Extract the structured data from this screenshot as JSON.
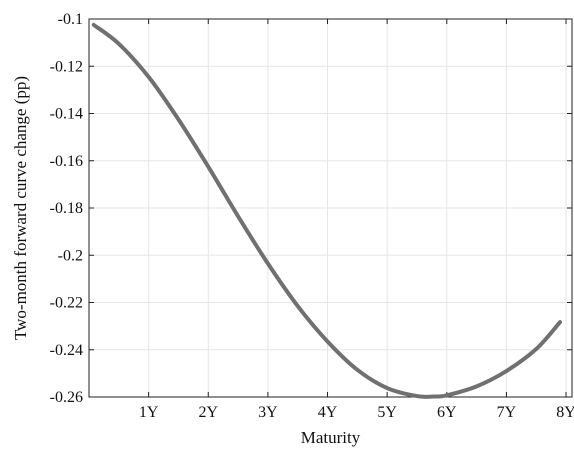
{
  "chart_data": {
    "type": "line",
    "title": "",
    "xlabel": "Maturity",
    "ylabel": "Two-month forward curve change (pp)",
    "xlim": [
      0,
      8.1
    ],
    "ylim": [
      -0.26,
      -0.1
    ],
    "x_ticks": [
      1,
      2,
      3,
      4,
      5,
      6,
      7,
      8
    ],
    "x_tick_labels": [
      "1Y",
      "2Y",
      "3Y",
      "4Y",
      "5Y",
      "6Y",
      "7Y",
      "8Y"
    ],
    "y_ticks": [
      -0.26,
      -0.24,
      -0.22,
      -0.2,
      -0.18,
      -0.16,
      -0.14,
      -0.12,
      -0.1
    ],
    "y_tick_labels": [
      "-0.26",
      "-0.24",
      "-0.22",
      "-0.2",
      "-0.18",
      "-0.16",
      "-0.14",
      "-0.12",
      "-0.1"
    ],
    "grid": true,
    "legend": "none",
    "series": [
      {
        "color": "#707070",
        "x": [
          0.08,
          0.5,
          1.0,
          1.5,
          2.0,
          2.5,
          3.0,
          3.5,
          4.0,
          4.5,
          5.0,
          5.5,
          5.8,
          6.0,
          6.5,
          7.0,
          7.5,
          7.9
        ],
        "y": [
          -0.1025,
          -0.1105,
          -0.1245,
          -0.1425,
          -0.1625,
          -0.1835,
          -0.2035,
          -0.2215,
          -0.2365,
          -0.2485,
          -0.2562,
          -0.2596,
          -0.2598,
          -0.2593,
          -0.2555,
          -0.249,
          -0.2397,
          -0.2283
        ]
      }
    ]
  }
}
